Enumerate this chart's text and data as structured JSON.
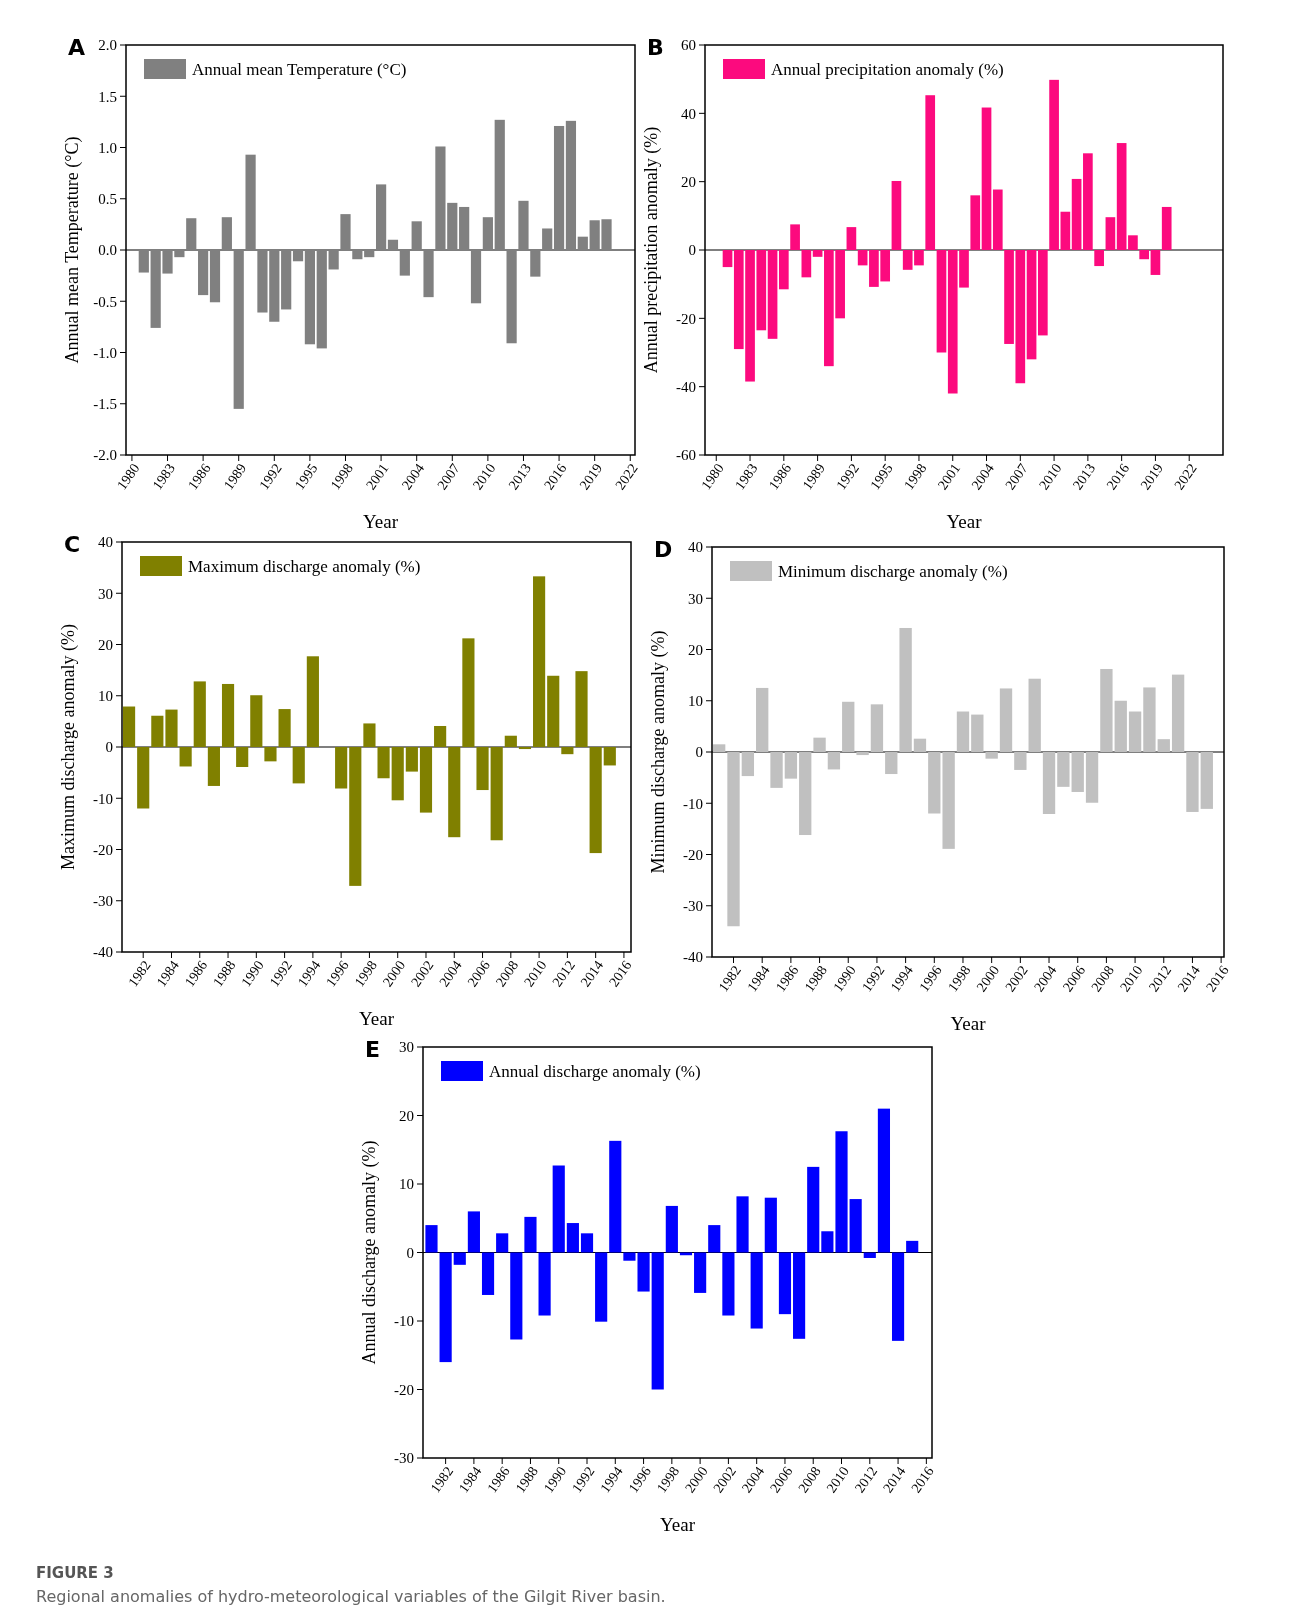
{
  "chart_data": [
    {
      "type": "bar",
      "title": "A",
      "xlabel": "Year",
      "ylabel": "Annual mean Temperature (°C)",
      "legend": "top left",
      "x": [
        1981,
        1982,
        1983,
        1984,
        1985,
        1986,
        1987,
        1988,
        1989,
        1990,
        1991,
        1992,
        1993,
        1994,
        1995,
        1996,
        1997,
        1998,
        1999,
        2000,
        2001,
        2002,
        2003,
        2004,
        2005,
        2006,
        2007,
        2008,
        2009,
        2010,
        2011,
        2012,
        2013,
        2014,
        2015,
        2016,
        2017,
        2018,
        2019,
        2020
      ],
      "series": [
        {
          "name": "Annual mean Temperature (°C)",
          "color": "#808080",
          "values": [
            -0.22,
            -0.76,
            -0.23,
            -0.07,
            0.31,
            -0.44,
            -0.51,
            0.32,
            -1.55,
            0.93,
            -0.61,
            -0.7,
            -0.58,
            -0.11,
            -0.92,
            -0.96,
            -0.19,
            0.35,
            -0.09,
            -0.07,
            0.64,
            0.1,
            -0.25,
            0.28,
            -0.46,
            1.01,
            0.46,
            0.42,
            -0.52,
            0.32,
            1.27,
            -0.91,
            0.48,
            -0.26,
            0.21,
            1.21,
            1.26,
            0.13,
            0.29,
            0.3
          ]
        }
      ],
      "xlim": [
        1979.5,
        2022.4
      ],
      "xticks": [
        1980,
        1983,
        1986,
        1989,
        1992,
        1995,
        1998,
        2001,
        2004,
        2007,
        2010,
        2013,
        2016,
        2019,
        2022
      ],
      "ylim": [
        -2,
        2
      ],
      "yticks": [
        {
          "value": -2,
          "label": "-2.0"
        },
        {
          "value": -1.5,
          "label": "-1.5"
        },
        {
          "value": -1,
          "label": "-1.0"
        },
        {
          "value": -0.5,
          "label": "-0.5"
        },
        {
          "value": 0,
          "label": "0.0"
        },
        {
          "value": 0.5,
          "label": "0.5"
        },
        {
          "value": 1,
          "label": "1.0"
        },
        {
          "value": 1.5,
          "label": "1.5"
        },
        {
          "value": 2,
          "label": "2.0"
        }
      ]
    },
    {
      "type": "bar",
      "title": "B",
      "xlabel": "Year",
      "ylabel": "Annual precipitation anomaly (%)",
      "legend": "top left",
      "x": [
        1981,
        1982,
        1983,
        1984,
        1985,
        1986,
        1987,
        1988,
        1989,
        1990,
        1991,
        1992,
        1993,
        1994,
        1995,
        1996,
        1997,
        1998,
        1999,
        2000,
        2001,
        2002,
        2003,
        2004,
        2005,
        2006,
        2007,
        2008,
        2009,
        2010,
        2011,
        2012,
        2013,
        2014,
        2015,
        2016,
        2017,
        2018,
        2019,
        2020
      ],
      "series": [
        {
          "name": "Annual precipitation anomaly (%)",
          "color": "#fc0a7e",
          "values": [
            -5,
            -29,
            -38.5,
            -23.5,
            -26,
            -11.5,
            7.5,
            -8,
            -2,
            -34,
            -20,
            6.7,
            -4.5,
            -10.8,
            -9.2,
            20.2,
            -5.8,
            -4.5,
            45.3,
            -30,
            -42,
            -11,
            16,
            41.7,
            17.7,
            -27.5,
            -39,
            -32,
            -25,
            49.8,
            11.2,
            20.8,
            28.3,
            -4.7,
            9.6,
            31.3,
            4.3,
            -2.7,
            -7.3,
            12.6
          ]
        }
      ],
      "xlim": [
        1979,
        2025
      ],
      "xticks": [
        1980,
        1983,
        1986,
        1989,
        1992,
        1995,
        1998,
        2001,
        2004,
        2007,
        2010,
        2013,
        2016,
        2019,
        2022
      ],
      "ylim": [
        -60,
        60
      ],
      "yticks": [
        -60,
        -40,
        -20,
        0,
        20,
        40,
        60
      ]
    },
    {
      "type": "bar",
      "title": "C",
      "xlabel": "Year",
      "ylabel": "Maximum discharge anomaly (%)",
      "legend": "top left",
      "x": [
        1981,
        1982,
        1983,
        1984,
        1985,
        1986,
        1987,
        1988,
        1989,
        1990,
        1991,
        1992,
        1993,
        1994,
        1996,
        1997,
        1998,
        1999,
        2000,
        2001,
        2002,
        2003,
        2004,
        2005,
        2006,
        2007,
        2008,
        2009,
        2010,
        2011,
        2012,
        2013,
        2014,
        2015
      ],
      "series": [
        {
          "name": "Maximum discharge anomaly (%)",
          "color": "#808000",
          "values": [
            7.9,
            -12,
            6.1,
            7.3,
            -3.8,
            12.8,
            -7.6,
            12.3,
            -3.9,
            10.1,
            -2.8,
            7.4,
            -7.1,
            17.7,
            -8.1,
            -27.1,
            4.6,
            -6.1,
            -10.4,
            -4.8,
            -12.8,
            4.1,
            -17.6,
            21.2,
            -8.4,
            -18.2,
            2.2,
            -0.4,
            33.3,
            13.9,
            -1.4,
            14.8,
            -20.7,
            -3.6
          ]
        }
      ],
      "xlim": [
        1980.5,
        2016.5
      ],
      "xticks": [
        1982,
        1984,
        1986,
        1988,
        1990,
        1992,
        1994,
        1996,
        1998,
        2000,
        2002,
        2004,
        2006,
        2008,
        2010,
        2012,
        2014,
        2016
      ],
      "ylim": [
        -40,
        40
      ],
      "yticks": [
        -40,
        -30,
        -20,
        -10,
        0,
        10,
        20,
        30,
        40
      ]
    },
    {
      "type": "bar",
      "title": "D",
      "xlabel": "Year",
      "ylabel": "Minimum discharge anomaly (%)",
      "legend": "top left",
      "x": [
        1981,
        1982,
        1983,
        1984,
        1985,
        1986,
        1987,
        1988,
        1989,
        1990,
        1991,
        1992,
        1993,
        1994,
        1995,
        1996,
        1997,
        1998,
        1999,
        2000,
        2001,
        2002,
        2003,
        2004,
        2005,
        2006,
        2007,
        2008,
        2009,
        2010,
        2011,
        2012,
        2013,
        2014,
        2015
      ],
      "series": [
        {
          "name": "Minimum discharge anomaly (%)",
          "color": "#c0c0c0",
          "values": [
            1.5,
            -34,
            -4.7,
            12.5,
            -7,
            -5.2,
            -16.2,
            2.8,
            -3.4,
            9.8,
            -0.6,
            9.3,
            -4.3,
            24.2,
            2.6,
            -12,
            -18.9,
            7.9,
            7.3,
            -1.3,
            12.4,
            -3.5,
            14.3,
            -12.1,
            -6.8,
            -7.8,
            -9.9,
            16.2,
            10,
            7.9,
            12.6,
            2.5,
            15.1,
            -11.7,
            -11.1
          ]
        }
      ],
      "xlim": [
        1980.5,
        2016.2
      ],
      "xticks": [
        1982,
        1984,
        1986,
        1988,
        1990,
        1992,
        1994,
        1996,
        1998,
        2000,
        2002,
        2004,
        2006,
        2008,
        2010,
        2012,
        2014,
        2016
      ],
      "ylim": [
        -40,
        40
      ],
      "yticks": [
        -40,
        -30,
        -20,
        -10,
        0,
        10,
        20,
        30,
        40
      ]
    },
    {
      "type": "bar",
      "title": "E",
      "xlabel": "Year",
      "ylabel": "Annual discharge anomaly (%)",
      "legend": "top left",
      "x": [
        1981,
        1982,
        1983,
        1984,
        1985,
        1986,
        1987,
        1988,
        1989,
        1990,
        1991,
        1992,
        1993,
        1994,
        1995,
        1996,
        1997,
        1998,
        1999,
        2000,
        2001,
        2002,
        2003,
        2004,
        2005,
        2006,
        2007,
        2008,
        2009,
        2010,
        2011,
        2012,
        2013,
        2014,
        2015
      ],
      "series": [
        {
          "name": "Annual discharge anomaly (%)",
          "color": "#0000ff",
          "values": [
            4,
            -16,
            -1.8,
            6,
            -6.2,
            2.8,
            -12.7,
            5.2,
            -9.2,
            12.7,
            4.3,
            2.8,
            -10.1,
            16.3,
            -1.2,
            -5.7,
            -20,
            6.8,
            -0.4,
            -5.9,
            4,
            -9.2,
            8.2,
            -11.1,
            8,
            -9,
            -12.6,
            12.5,
            3.1,
            17.7,
            7.8,
            -0.8,
            21,
            -12.9,
            1.7
          ]
        }
      ],
      "xlim": [
        1980.4,
        2016.4
      ],
      "xticks": [
        1982,
        1984,
        1986,
        1988,
        1990,
        1992,
        1994,
        1996,
        1998,
        2000,
        2002,
        2004,
        2006,
        2008,
        2010,
        2012,
        2014,
        2016
      ],
      "ylim": [
        -30,
        30
      ],
      "yticks": [
        -30,
        -20,
        -10,
        0,
        10,
        20,
        30
      ],
      "annotations": [
        "FIGURE 3",
        "Regional anomalies of hydro-meteorological variables of the Gilgit River basin."
      ]
    }
  ]
}
